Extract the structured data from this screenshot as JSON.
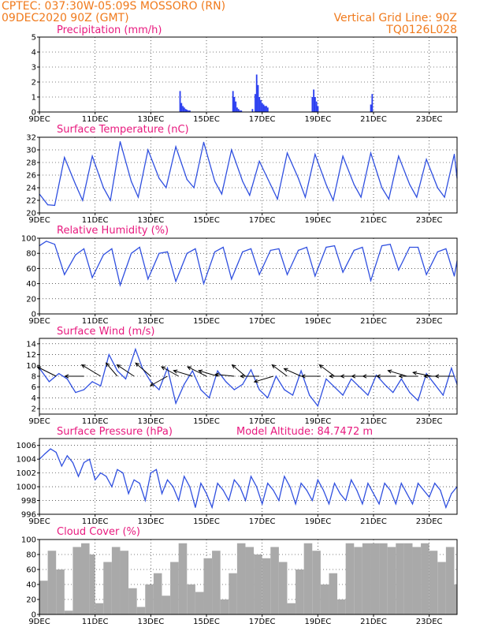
{
  "header": {
    "line1": "CPTEC:   037:30W-05:09S   MOSSORO (RN)",
    "line2": "09DEC2020 90Z (GMT)",
    "grid_note": "Vertical Grid Line: 90Z",
    "code": "TQ0126L028"
  },
  "colors": {
    "header": "#f07a1c",
    "title": "#e8197e",
    "line": "#3050e0",
    "bar": "#2a3ef0",
    "cloud": "#a9a9a9",
    "arrow": "#000000"
  },
  "date_ticks": [
    "9DEC",
    "11DEC",
    "13DEC",
    "15DEC",
    "17DEC",
    "19DEC",
    "21DEC",
    "23DEC"
  ],
  "date_tick_days": [
    9,
    11,
    13,
    15,
    17,
    19,
    21,
    23
  ],
  "chart_data": [
    {
      "id": "precip",
      "type": "bar",
      "title": "Precipitation (mm/h)",
      "x_range_days": [
        9,
        24
      ],
      "ylim": [
        0,
        5
      ],
      "yticks": [
        0,
        1,
        2,
        3,
        4,
        5
      ],
      "grid": true,
      "x_days": [
        14.05,
        14.1,
        14.15,
        14.2,
        14.25,
        14.3,
        14.35,
        14.4,
        15.95,
        16.0,
        16.05,
        16.1,
        16.15,
        16.2,
        16.25,
        16.65,
        16.75,
        16.8,
        16.85,
        16.9,
        16.95,
        17.0,
        17.05,
        17.1,
        17.15,
        17.2,
        18.8,
        18.85,
        18.9,
        18.95,
        19.0,
        20.9,
        20.95
      ],
      "values": [
        1.4,
        0.6,
        0.4,
        0.3,
        0.2,
        0.15,
        0.1,
        0.1,
        1.4,
        1.0,
        0.7,
        0.3,
        0.2,
        0.1,
        0.1,
        0.2,
        1.2,
        2.5,
        1.8,
        1.0,
        0.8,
        0.6,
        0.5,
        0.4,
        0.4,
        0.3,
        1.0,
        1.5,
        1.0,
        0.7,
        0.4,
        0.5,
        1.2
      ]
    },
    {
      "id": "temp",
      "type": "line",
      "title": "Surface Temperature (nC)",
      "x_range_days": [
        9,
        24
      ],
      "ylim": [
        20,
        32
      ],
      "yticks": [
        20,
        22,
        24,
        26,
        28,
        30,
        32
      ],
      "grid": true,
      "x_days": [
        9.0,
        9.3,
        9.55,
        9.9,
        10.3,
        10.55,
        10.9,
        11.3,
        11.55,
        11.9,
        12.3,
        12.55,
        12.9,
        13.3,
        13.55,
        13.9,
        14.3,
        14.55,
        14.9,
        15.3,
        15.55,
        15.9,
        16.3,
        16.55,
        16.9,
        17.3,
        17.55,
        17.9,
        18.3,
        18.55,
        18.9,
        19.3,
        19.55,
        19.9,
        20.3,
        20.55,
        20.9,
        21.3,
        21.55,
        21.9,
        22.3,
        22.55,
        22.9,
        23.3,
        23.55,
        23.9,
        24.0
      ],
      "values": [
        23.0,
        21.3,
        21.2,
        28.8,
        24.5,
        22.0,
        29.0,
        24.0,
        22.0,
        31.3,
        25.0,
        22.5,
        30.0,
        25.5,
        24.0,
        30.5,
        25.3,
        24.0,
        31.2,
        25.0,
        23.0,
        30.0,
        25.0,
        22.8,
        28.2,
        24.5,
        22.2,
        29.5,
        25.5,
        22.5,
        29.3,
        24.5,
        22.0,
        29.0,
        24.5,
        22.5,
        29.5,
        24.0,
        22.2,
        29.0,
        24.5,
        22.5,
        28.5,
        24.0,
        22.5,
        29.3,
        25.5
      ]
    },
    {
      "id": "rh",
      "type": "line",
      "title": "Relative Humidity (%)",
      "x_range_days": [
        9,
        24
      ],
      "ylim": [
        0,
        100
      ],
      "yticks": [
        0,
        20,
        40,
        60,
        80,
        100
      ],
      "grid": true,
      "x_days": [
        9.0,
        9.25,
        9.55,
        9.9,
        10.3,
        10.6,
        10.9,
        11.3,
        11.6,
        11.9,
        12.3,
        12.6,
        12.9,
        13.3,
        13.6,
        13.9,
        14.3,
        14.6,
        14.9,
        15.3,
        15.6,
        15.9,
        16.3,
        16.6,
        16.9,
        17.3,
        17.6,
        17.9,
        18.3,
        18.6,
        18.9,
        19.3,
        19.6,
        19.9,
        20.3,
        20.6,
        20.9,
        21.3,
        21.6,
        21.9,
        22.3,
        22.6,
        22.9,
        23.3,
        23.6,
        23.9,
        24.0
      ],
      "values": [
        90,
        96,
        92,
        52,
        78,
        86,
        48,
        78,
        86,
        38,
        80,
        88,
        46,
        80,
        82,
        43,
        80,
        86,
        40,
        82,
        88,
        46,
        82,
        86,
        52,
        84,
        86,
        52,
        84,
        88,
        50,
        88,
        90,
        55,
        84,
        88,
        44,
        90,
        92,
        58,
        88,
        88,
        52,
        82,
        86,
        50,
        70
      ]
    },
    {
      "id": "wind",
      "type": "line",
      "title": "Surface Wind (m/s)",
      "x_range_days": [
        9,
        24
      ],
      "ylim": [
        1,
        15
      ],
      "yticks": [
        2,
        4,
        6,
        8,
        10,
        12,
        14
      ],
      "grid": true,
      "x_days": [
        9.0,
        9.35,
        9.7,
        10.0,
        10.3,
        10.6,
        10.9,
        11.2,
        11.5,
        11.8,
        12.1,
        12.45,
        12.7,
        13.0,
        13.3,
        13.6,
        13.9,
        14.2,
        14.5,
        14.8,
        15.1,
        15.4,
        15.7,
        16.0,
        16.3,
        16.6,
        16.9,
        17.2,
        17.5,
        17.8,
        18.1,
        18.4,
        18.7,
        19.0,
        19.3,
        19.6,
        19.9,
        20.2,
        20.5,
        20.8,
        21.1,
        21.4,
        21.7,
        22.0,
        22.3,
        22.6,
        22.9,
        23.2,
        23.5,
        23.8,
        24.0
      ],
      "values": [
        9.5,
        7.0,
        8.5,
        7.5,
        5.0,
        5.5,
        7.0,
        6.2,
        12.0,
        9.0,
        7.5,
        13.0,
        9.5,
        7.0,
        5.5,
        9.5,
        3.0,
        6.5,
        9.0,
        5.5,
        4.0,
        9.0,
        7.0,
        5.5,
        6.5,
        9.2,
        5.5,
        4.0,
        8.0,
        5.5,
        4.5,
        9.0,
        4.5,
        2.5,
        7.5,
        6.0,
        4.5,
        7.5,
        6.0,
        4.5,
        8.2,
        6.5,
        5.0,
        7.5,
        5.0,
        3.5,
        8.5,
        6.5,
        4.5,
        9.5,
        6.5
      ],
      "arrows": [
        {
          "day": 9.6,
          "u": -1.0,
          "v": 0.5
        },
        {
          "day": 10.6,
          "u": -1.0,
          "v": 0.0
        },
        {
          "day": 11.2,
          "u": -1.0,
          "v": 0.6
        },
        {
          "day": 11.8,
          "u": -0.6,
          "v": 0.7
        },
        {
          "day": 12.4,
          "u": -0.9,
          "v": 0.6
        },
        {
          "day": 13.0,
          "u": -0.8,
          "v": 0.7
        },
        {
          "day": 13.6,
          "u": -0.9,
          "v": -0.5
        },
        {
          "day": 14.0,
          "u": -0.9,
          "v": 0.5
        },
        {
          "day": 14.5,
          "u": -1.0,
          "v": 0.3
        },
        {
          "day": 15.0,
          "u": -1.0,
          "v": 0.5
        },
        {
          "day": 15.4,
          "u": -1.0,
          "v": 0.3
        },
        {
          "day": 16.0,
          "u": -1.0,
          "v": 0.1
        },
        {
          "day": 16.4,
          "u": -0.7,
          "v": 0.6
        },
        {
          "day": 16.9,
          "u": -1.0,
          "v": 0.0
        },
        {
          "day": 17.4,
          "u": -1.0,
          "v": -0.3
        },
        {
          "day": 17.9,
          "u": -0.8,
          "v": 0.6
        },
        {
          "day": 18.4,
          "u": -0.9,
          "v": 0.4
        },
        {
          "day": 19.1,
          "u": -1.0,
          "v": 0.0
        },
        {
          "day": 19.6,
          "u": -0.8,
          "v": 0.6
        },
        {
          "day": 20.1,
          "u": -1.0,
          "v": 0.0
        },
        {
          "day": 20.5,
          "u": -1.0,
          "v": 0.0
        },
        {
          "day": 20.9,
          "u": -1.0,
          "v": 0.0
        },
        {
          "day": 21.3,
          "u": -1.0,
          "v": 0.0
        },
        {
          "day": 21.8,
          "u": -1.0,
          "v": 0.0
        },
        {
          "day": 22.2,
          "u": -1.0,
          "v": 0.3
        },
        {
          "day": 22.6,
          "u": -1.0,
          "v": 0.0
        },
        {
          "day": 23.1,
          "u": -1.0,
          "v": 0.2
        },
        {
          "day": 23.5,
          "u": -1.0,
          "v": 0.0
        },
        {
          "day": 23.9,
          "u": -1.0,
          "v": 0.0
        }
      ]
    },
    {
      "id": "pres",
      "type": "line",
      "title": "Surface Pressure (hPa)",
      "subtitle": "Model Altitude: 84.7472 m",
      "x_range_days": [
        9,
        24
      ],
      "ylim": [
        996,
        1007
      ],
      "yticks": [
        996,
        998,
        1000,
        1002,
        1004,
        1006
      ],
      "grid": true,
      "x_days": [
        9.0,
        9.2,
        9.4,
        9.6,
        9.8,
        10.0,
        10.2,
        10.4,
        10.6,
        10.8,
        11.0,
        11.2,
        11.4,
        11.6,
        11.8,
        12.0,
        12.2,
        12.4,
        12.6,
        12.8,
        13.0,
        13.2,
        13.4,
        13.6,
        13.8,
        14.0,
        14.2,
        14.4,
        14.6,
        14.8,
        15.0,
        15.2,
        15.4,
        15.6,
        15.8,
        16.0,
        16.2,
        16.4,
        16.6,
        16.8,
        17.0,
        17.2,
        17.4,
        17.6,
        17.8,
        18.0,
        18.2,
        18.4,
        18.6,
        18.8,
        19.0,
        19.2,
        19.4,
        19.6,
        19.8,
        20.0,
        20.2,
        20.4,
        20.6,
        20.8,
        21.0,
        21.2,
        21.4,
        21.6,
        21.8,
        22.0,
        22.2,
        22.4,
        22.6,
        22.8,
        23.0,
        23.2,
        23.4,
        23.6,
        23.8,
        24.0
      ],
      "values": [
        1004.0,
        1004.8,
        1005.5,
        1005.0,
        1003.0,
        1004.5,
        1003.5,
        1001.5,
        1003.5,
        1004.0,
        1001.0,
        1002.0,
        1001.5,
        1000.0,
        1002.5,
        1002.0,
        999.0,
        1001.0,
        1000.5,
        998.0,
        1002.0,
        1002.5,
        999.0,
        1001.0,
        1000.0,
        998.0,
        1001.5,
        1000.0,
        997.0,
        1000.5,
        999.0,
        997.0,
        1000.5,
        999.5,
        998.0,
        1001.0,
        1000.0,
        998.0,
        1001.5,
        1000.0,
        997.5,
        1000.5,
        999.5,
        998.0,
        1001.5,
        1000.0,
        997.5,
        1000.5,
        999.5,
        998.0,
        1001.0,
        999.5,
        997.5,
        1000.5,
        999.0,
        998.0,
        1001.0,
        999.5,
        997.5,
        1000.5,
        999.0,
        997.5,
        1000.5,
        999.5,
        997.5,
        1000.5,
        999.0,
        997.5,
        1000.5,
        999.5,
        998.5,
        1000.5,
        999.5,
        997.0,
        999.0,
        1000.0
      ]
    },
    {
      "id": "cloud",
      "type": "area",
      "title": "Cloud Cover (%)",
      "x_range_days": [
        9,
        24
      ],
      "ylim": [
        0,
        100
      ],
      "yticks": [
        0,
        20,
        40,
        60,
        80,
        100
      ],
      "grid": true,
      "x_days": [
        9.0,
        9.3,
        9.6,
        9.9,
        10.2,
        10.5,
        10.8,
        11.0,
        11.3,
        11.6,
        11.9,
        12.2,
        12.5,
        12.8,
        13.1,
        13.4,
        13.7,
        14.0,
        14.3,
        14.6,
        14.9,
        15.2,
        15.5,
        15.8,
        16.1,
        16.4,
        16.7,
        17.0,
        17.3,
        17.6,
        17.9,
        18.2,
        18.5,
        18.8,
        19.1,
        19.4,
        19.7,
        20.0,
        20.3,
        20.6,
        20.9,
        21.2,
        21.5,
        21.8,
        22.1,
        22.4,
        22.7,
        23.0,
        23.3,
        23.6,
        23.9,
        24.0
      ],
      "values": [
        45,
        85,
        60,
        5,
        90,
        95,
        80,
        15,
        70,
        90,
        85,
        35,
        10,
        40,
        55,
        25,
        70,
        95,
        40,
        30,
        75,
        85,
        20,
        55,
        95,
        90,
        80,
        75,
        90,
        70,
        15,
        60,
        95,
        85,
        40,
        55,
        20,
        95,
        90,
        95,
        95,
        95,
        90,
        95,
        95,
        90,
        95,
        85,
        70,
        90,
        40,
        5
      ]
    }
  ]
}
